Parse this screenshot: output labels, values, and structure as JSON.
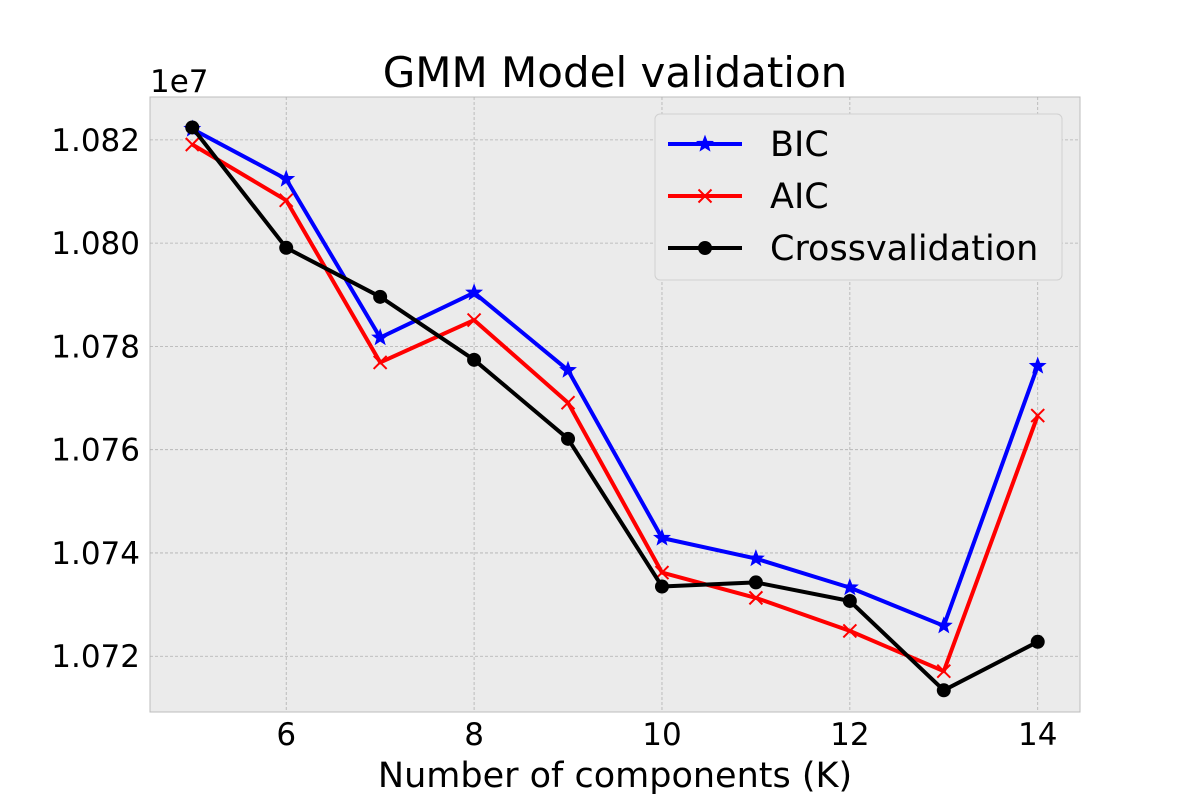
{
  "chart_data": {
    "type": "line",
    "title": "GMM Model validation",
    "xlabel": "Number of components (K)",
    "ylabel": "",
    "y_offset_label": "1e7",
    "x": [
      5,
      6,
      7,
      8,
      9,
      10,
      11,
      12,
      13,
      14
    ],
    "xlim": [
      4.55,
      14.45
    ],
    "ylim": [
      1.07092,
      1.08283
    ],
    "x_ticks": [
      6,
      8,
      10,
      12,
      14
    ],
    "x_tick_labels": [
      "6",
      "8",
      "10",
      "12",
      "14"
    ],
    "y_ticks": [
      1.072,
      1.074,
      1.076,
      1.078,
      1.08,
      1.082
    ],
    "y_tick_labels": [
      "1.072",
      "1.074",
      "1.076",
      "1.078",
      "1.080",
      "1.082"
    ],
    "grid": true,
    "legend_position": "top-right",
    "series": [
      {
        "name": "BIC",
        "color": "#0000ff",
        "marker": "star",
        "values": [
          1.08221,
          1.08124,
          1.07817,
          1.07904,
          1.07754,
          1.07429,
          1.07389,
          1.07333,
          1.07259,
          1.07762
        ]
      },
      {
        "name": "AIC",
        "color": "#ff0000",
        "marker": "x",
        "values": [
          1.08191,
          1.08083,
          1.07769,
          1.07851,
          1.07691,
          1.07362,
          1.07313,
          1.07249,
          1.07171,
          1.07666
        ]
      },
      {
        "name": "Crossvalidation",
        "color": "#000000",
        "marker": "circle",
        "values": [
          1.08224,
          1.07991,
          1.07896,
          1.07774,
          1.07621,
          1.07335,
          1.07343,
          1.07307,
          1.07134,
          1.07228
        ]
      }
    ]
  }
}
